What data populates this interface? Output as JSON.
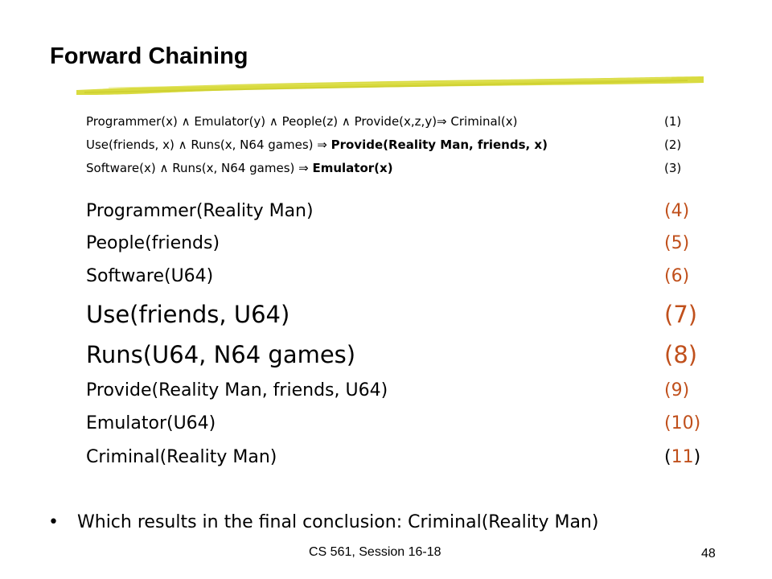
{
  "title": "Forward Chaining",
  "rules": [
    {
      "text": "Programmer(x) ∧ Emulator(y) ∧ People(z) ∧ Provide(x,z,y)⇒ Criminal(x)",
      "number": "(1)"
    },
    {
      "text_plain": "Use(friends, x) ∧ Runs(x, N64 games) ⇒ ",
      "text_bold": "Provide(Reality Man, friends, x)",
      "number": "(2)"
    },
    {
      "text_plain": "Software(x) ∧ Runs(x, N64 games) ⇒ ",
      "text_bold": "Emulator(x)",
      "number": "(3)"
    }
  ],
  "facts": [
    {
      "text": "Programmer(Reality Man)",
      "number": "(4)"
    },
    {
      "text": "People(friends)",
      "number": "(5)"
    },
    {
      "text": "Software(U64)",
      "number": "(6)"
    },
    {
      "text": "Use(friends, U64)",
      "number": "(7)"
    },
    {
      "text": "Runs(U64, N64 games)",
      "number": "(8)"
    },
    {
      "text": "Provide(Reality Man, friends, U64)",
      "number": "(9)"
    },
    {
      "text": "Emulator(U64)",
      "number": "(10)"
    },
    {
      "text": "Criminal(Reality Man)",
      "number_open": "(",
      "number_value": "11",
      "number_close": ")"
    }
  ],
  "bullet": {
    "symbol": "•",
    "text": "Which results in the final conclusion: Criminal(Reality Man)"
  },
  "footer": "CS 561,  Session 16-18",
  "page_number": "48",
  "colors": {
    "accent_number": "#c0501c",
    "underline_bar": "#d7d936",
    "text": "#000000"
  }
}
